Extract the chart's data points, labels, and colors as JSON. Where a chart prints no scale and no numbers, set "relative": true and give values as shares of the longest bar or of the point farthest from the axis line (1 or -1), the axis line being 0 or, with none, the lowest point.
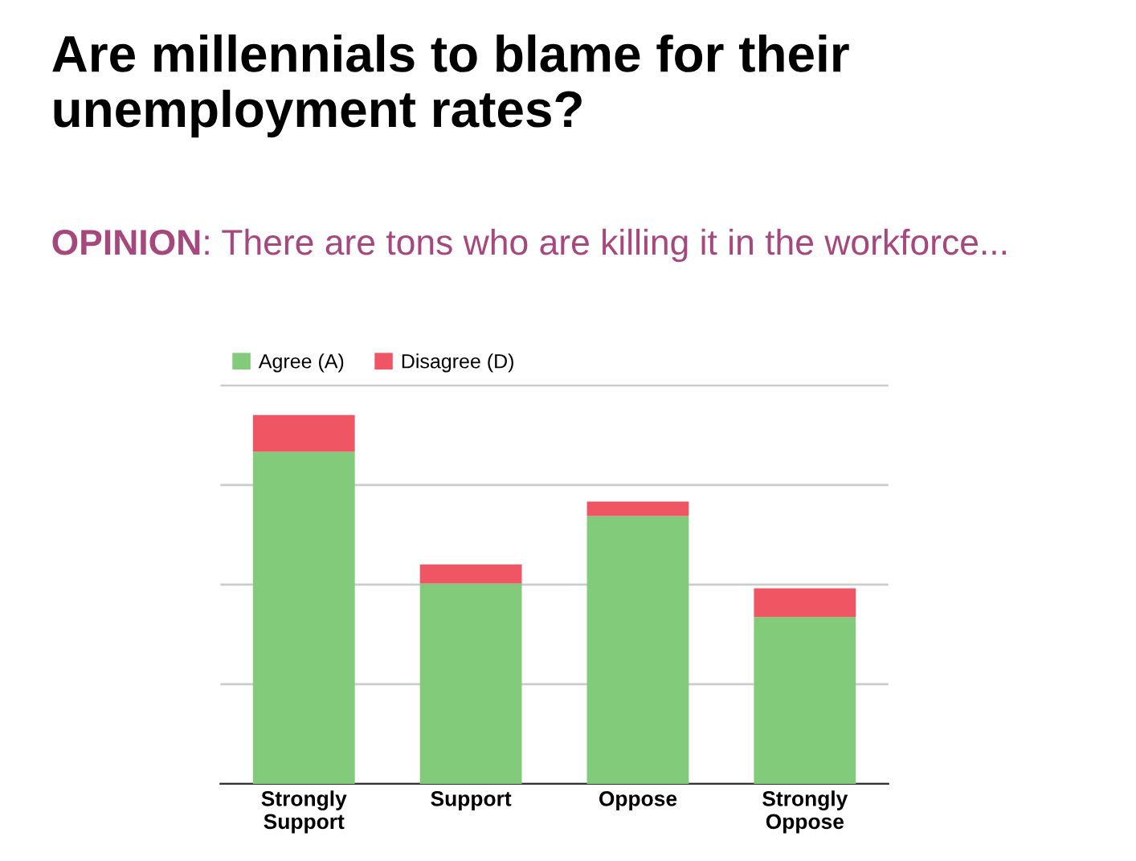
{
  "chart_data": {
    "type": "bar",
    "title": "Are millennials to blame for their\nunemployment rates?",
    "subtitle": "OPINION: There are tons who are killing it in the workforce...",
    "categories": [
      "Strongly\nSupport",
      "Support",
      "Oppose",
      "Strongly\nOppose"
    ],
    "series": [
      {
        "name": "Agree (A)",
        "color": "#81cb7a",
        "values": [
          0.9,
          0.543,
          0.726,
          0.452
        ]
      },
      {
        "name": "Disagree (D)",
        "color": "#ef5562",
        "values": [
          0.1,
          0.052,
          0.039,
          0.078
        ]
      }
    ],
    "stacked": true,
    "relative": true,
    "grid": "y",
    "legend": "top left"
  }
}
